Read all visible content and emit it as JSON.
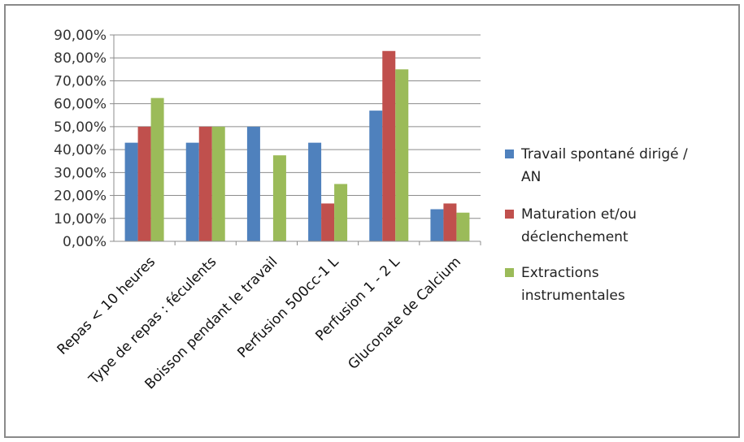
{
  "chart_data": {
    "type": "bar",
    "title": "",
    "xlabel": "",
    "ylabel": "",
    "ylim": [
      0,
      0.9
    ],
    "y_tick_labels": [
      "0,00%",
      "10,00%",
      "20,00%",
      "30,00%",
      "40,00%",
      "50,00%",
      "60,00%",
      "70,00%",
      "80,00%",
      "90,00%"
    ],
    "grid": true,
    "legend_position": "right",
    "categories": [
      "Repas < 10 heures",
      "Type de repas : féculents",
      "Boisson pendant le travail",
      "Perfusion 500cc-1 L",
      "Perfusion 1 - 2 L",
      "Gluconate de Calcium"
    ],
    "series": [
      {
        "name": "Travail spontané dirigé / AN",
        "legend_lines": [
          "Travail spontané dirigé /",
          "AN"
        ],
        "color": "#4f81bd",
        "values": [
          0.43,
          0.43,
          0.5,
          0.43,
          0.57,
          0.14
        ]
      },
      {
        "name": "Maturation et/ou déclenchement",
        "legend_lines": [
          "Maturation et/ou",
          "déclenchement"
        ],
        "color": "#c0504d",
        "values": [
          0.5,
          0.5,
          0.0,
          0.165,
          0.83,
          0.165
        ]
      },
      {
        "name": "Extractions instrumentales",
        "legend_lines": [
          "Extractions",
          "instrumentales"
        ],
        "color": "#9bbb59",
        "values": [
          0.625,
          0.5,
          0.375,
          0.25,
          0.75,
          0.125
        ]
      }
    ]
  }
}
